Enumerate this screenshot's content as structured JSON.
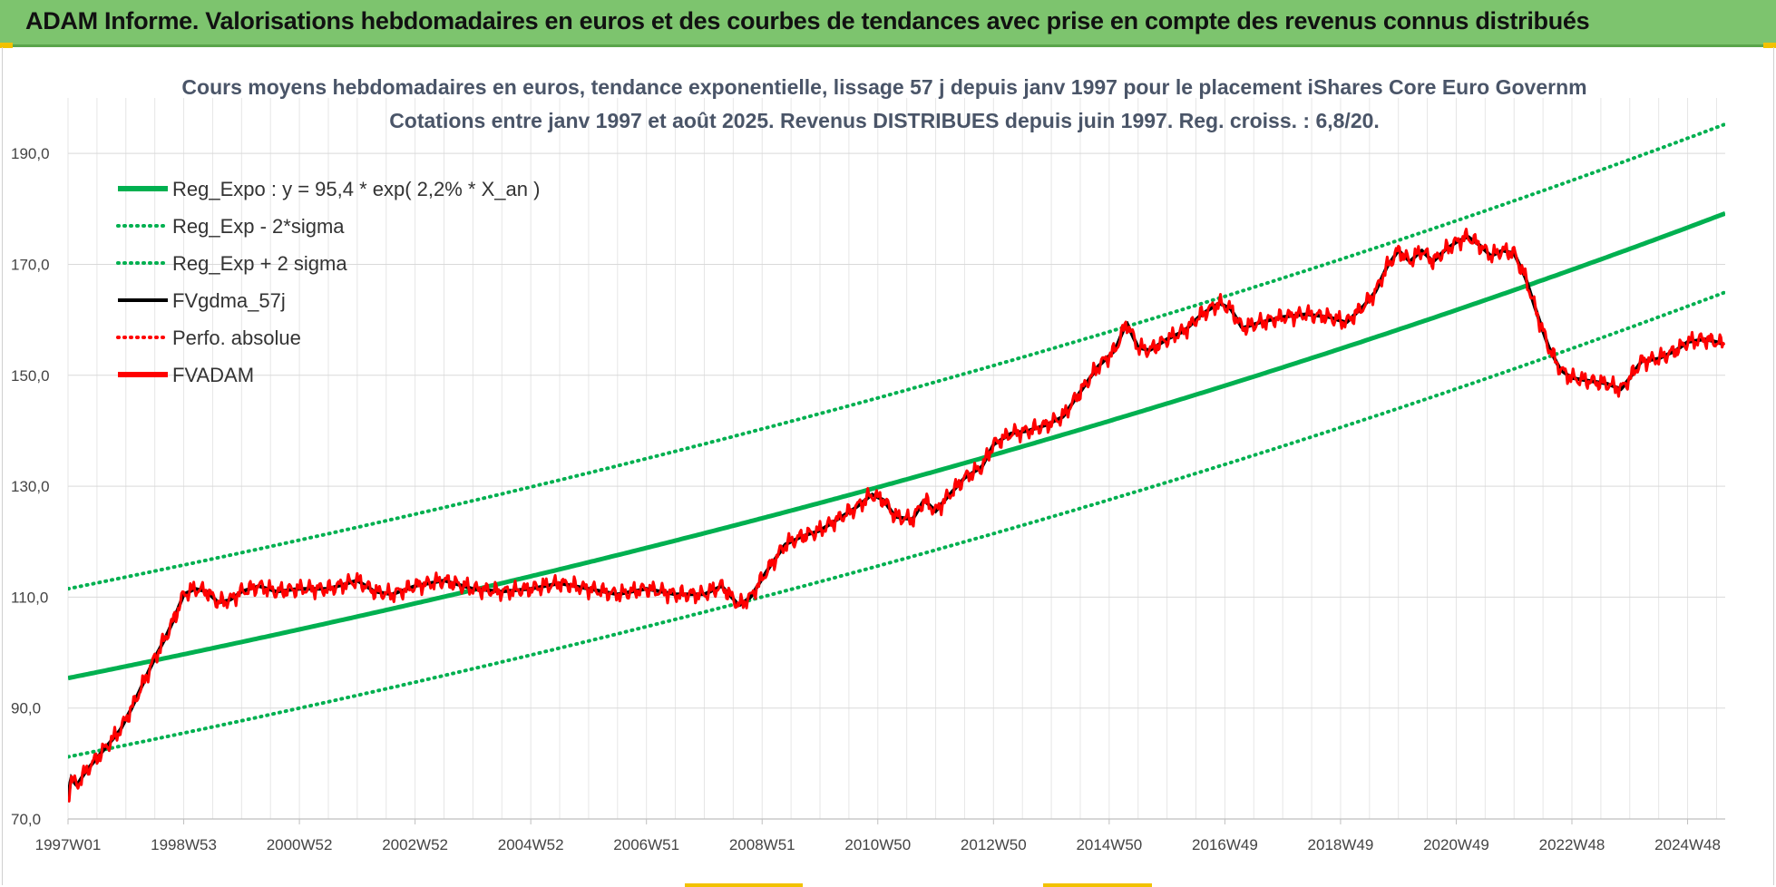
{
  "header": {
    "title": "ADAM Informe. Valorisations hebdomadaires en euros et des courbes de tendances avec prise en compte des revenus connus distribués"
  },
  "colors": {
    "header_bg": "#7dc46e",
    "regression": "#00b050",
    "smoothed": "#000000",
    "price": "#ff0000",
    "grid": "#d9d9d9"
  },
  "chart_data": {
    "type": "line",
    "title_line1": "Cours moyens hebdomadaires en euros, tendance exponentielle, lissage 57 j depuis janv 1997 pour le placement iShares Core Euro Governm",
    "title_line2": "Cotations entre janv 1997 et août 2025. Revenus DISTRIBUES depuis juin 1997. Reg. croiss. : 6,8/20.",
    "x_range": [
      1997.0,
      2025.65
    ],
    "ylim": [
      70,
      200
    ],
    "y_ticks": [
      70,
      90,
      110,
      130,
      150,
      170,
      190
    ],
    "y_tick_labels": [
      "70,0",
      "90,0",
      "110,0",
      "130,0",
      "150,0",
      "170,0",
      "190,0"
    ],
    "x_ticks": [
      {
        "x": 1997.0,
        "label": "1997W01"
      },
      {
        "x": 1999.0,
        "label": "1998W53"
      },
      {
        "x": 2001.0,
        "label": "2000W52"
      },
      {
        "x": 2003.0,
        "label": "2002W52"
      },
      {
        "x": 2005.0,
        "label": "2004W52"
      },
      {
        "x": 2007.0,
        "label": "2006W51"
      },
      {
        "x": 2009.0,
        "label": "2008W51"
      },
      {
        "x": 2011.0,
        "label": "2010W50"
      },
      {
        "x": 2013.0,
        "label": "2012W50"
      },
      {
        "x": 2015.0,
        "label": "2014W50"
      },
      {
        "x": 2017.0,
        "label": "2016W49"
      },
      {
        "x": 2019.0,
        "label": "2018W49"
      },
      {
        "x": 2021.0,
        "label": "2020W49"
      },
      {
        "x": 2023.0,
        "label": "2022W48"
      },
      {
        "x": 2025.0,
        "label": "2024W48"
      }
    ],
    "grid": true,
    "legend_position": "top-left",
    "series": [
      {
        "name": "Reg_Expo : y = 95,4 * exp( 2,2% *  X_an )",
        "style": "solid-thick",
        "color": "#00b050",
        "kind": "regression",
        "a": 95.4,
        "rate": 0.022,
        "sigma_offset": 0
      },
      {
        "name": "Reg_Exp - 2*sigma",
        "style": "dotted",
        "color": "#00b050",
        "kind": "regression",
        "a": 95.4,
        "rate": 0.022,
        "sigma_offset": -14.2
      },
      {
        "name": "Reg_Exp + 2 sigma",
        "style": "dotted",
        "color": "#00b050",
        "kind": "regression",
        "a": 95.4,
        "rate": 0.022,
        "sigma_offset": 16.1
      },
      {
        "name": "FVgdma_57j",
        "style": "solid",
        "color": "#000000",
        "kind": "smoothed"
      },
      {
        "name": "Perfo. absolue",
        "style": "dotted",
        "color": "#ff0000",
        "kind": "legend-only"
      },
      {
        "name": "FVADAM",
        "style": "solid-thick",
        "color": "#ff0000",
        "kind": "price"
      }
    ],
    "price_points": [
      [
        1997.0,
        73.5
      ],
      [
        1997.05,
        77.5
      ],
      [
        1997.15,
        76.0
      ],
      [
        1997.3,
        78.5
      ],
      [
        1997.5,
        81.0
      ],
      [
        1997.7,
        83.5
      ],
      [
        1997.9,
        86.0
      ],
      [
        1998.1,
        90.0
      ],
      [
        1998.3,
        94.5
      ],
      [
        1998.5,
        99.0
      ],
      [
        1998.7,
        103.0
      ],
      [
        1998.85,
        106.5
      ],
      [
        1999.0,
        110.5
      ],
      [
        1999.2,
        111.5
      ],
      [
        1999.4,
        111.0
      ],
      [
        1999.6,
        109.0
      ],
      [
        1999.8,
        109.5
      ],
      [
        2000.0,
        111.0
      ],
      [
        2000.3,
        112.0
      ],
      [
        2000.6,
        111.0
      ],
      [
        2001.0,
        111.5
      ],
      [
        2001.5,
        111.5
      ],
      [
        2002.0,
        113.0
      ],
      [
        2002.3,
        111.0
      ],
      [
        2002.6,
        110.5
      ],
      [
        2003.0,
        112.0
      ],
      [
        2003.5,
        113.0
      ],
      [
        2004.0,
        111.5
      ],
      [
        2004.5,
        111.0
      ],
      [
        2005.0,
        111.5
      ],
      [
        2005.5,
        112.5
      ],
      [
        2006.0,
        111.5
      ],
      [
        2006.5,
        110.5
      ],
      [
        2007.0,
        111.5
      ],
      [
        2007.5,
        110.5
      ],
      [
        2008.0,
        110.5
      ],
      [
        2008.3,
        112.0
      ],
      [
        2008.6,
        108.5
      ],
      [
        2008.8,
        110.0
      ],
      [
        2009.1,
        115.0
      ],
      [
        2009.4,
        119.5
      ],
      [
        2009.7,
        121.0
      ],
      [
        2010.0,
        122.0
      ],
      [
        2010.3,
        124.0
      ],
      [
        2010.6,
        126.0
      ],
      [
        2010.9,
        128.5
      ],
      [
        2011.1,
        127.5
      ],
      [
        2011.3,
        124.5
      ],
      [
        2011.6,
        124.0
      ],
      [
        2011.8,
        127.5
      ],
      [
        2012.0,
        125.5
      ],
      [
        2012.2,
        128.0
      ],
      [
        2012.5,
        131.5
      ],
      [
        2012.8,
        133.5
      ],
      [
        2013.0,
        137.5
      ],
      [
        2013.3,
        139.5
      ],
      [
        2013.6,
        140.0
      ],
      [
        2013.9,
        141.0
      ],
      [
        2014.2,
        142.5
      ],
      [
        2014.5,
        147.0
      ],
      [
        2014.8,
        151.5
      ],
      [
        2015.1,
        154.5
      ],
      [
        2015.3,
        159.5
      ],
      [
        2015.5,
        155.0
      ],
      [
        2015.7,
        154.5
      ],
      [
        2016.0,
        156.5
      ],
      [
        2016.3,
        158.0
      ],
      [
        2016.6,
        161.0
      ],
      [
        2016.9,
        163.0
      ],
      [
        2017.1,
        162.0
      ],
      [
        2017.3,
        158.5
      ],
      [
        2017.6,
        159.5
      ],
      [
        2018.0,
        160.5
      ],
      [
        2018.4,
        161.0
      ],
      [
        2018.8,
        160.5
      ],
      [
        2019.1,
        159.5
      ],
      [
        2019.4,
        162.5
      ],
      [
        2019.6,
        165.0
      ],
      [
        2019.8,
        169.5
      ],
      [
        2020.0,
        172.5
      ],
      [
        2020.2,
        170.5
      ],
      [
        2020.4,
        172.5
      ],
      [
        2020.6,
        170.5
      ],
      [
        2020.8,
        172.5
      ],
      [
        2021.0,
        174.0
      ],
      [
        2021.2,
        175.0
      ],
      [
        2021.4,
        173.5
      ],
      [
        2021.6,
        171.5
      ],
      [
        2021.8,
        172.5
      ],
      [
        2022.0,
        172.0
      ],
      [
        2022.2,
        167.5
      ],
      [
        2022.4,
        161.0
      ],
      [
        2022.6,
        155.0
      ],
      [
        2022.8,
        151.0
      ],
      [
        2023.0,
        149.5
      ],
      [
        2023.3,
        149.0
      ],
      [
        2023.6,
        148.5
      ],
      [
        2023.85,
        147.5
      ],
      [
        2024.0,
        149.5
      ],
      [
        2024.2,
        152.5
      ],
      [
        2024.5,
        153.0
      ],
      [
        2024.8,
        154.5
      ],
      [
        2025.0,
        156.0
      ],
      [
        2025.3,
        156.5
      ],
      [
        2025.5,
        156.0
      ],
      [
        2025.65,
        155.5
      ]
    ]
  }
}
